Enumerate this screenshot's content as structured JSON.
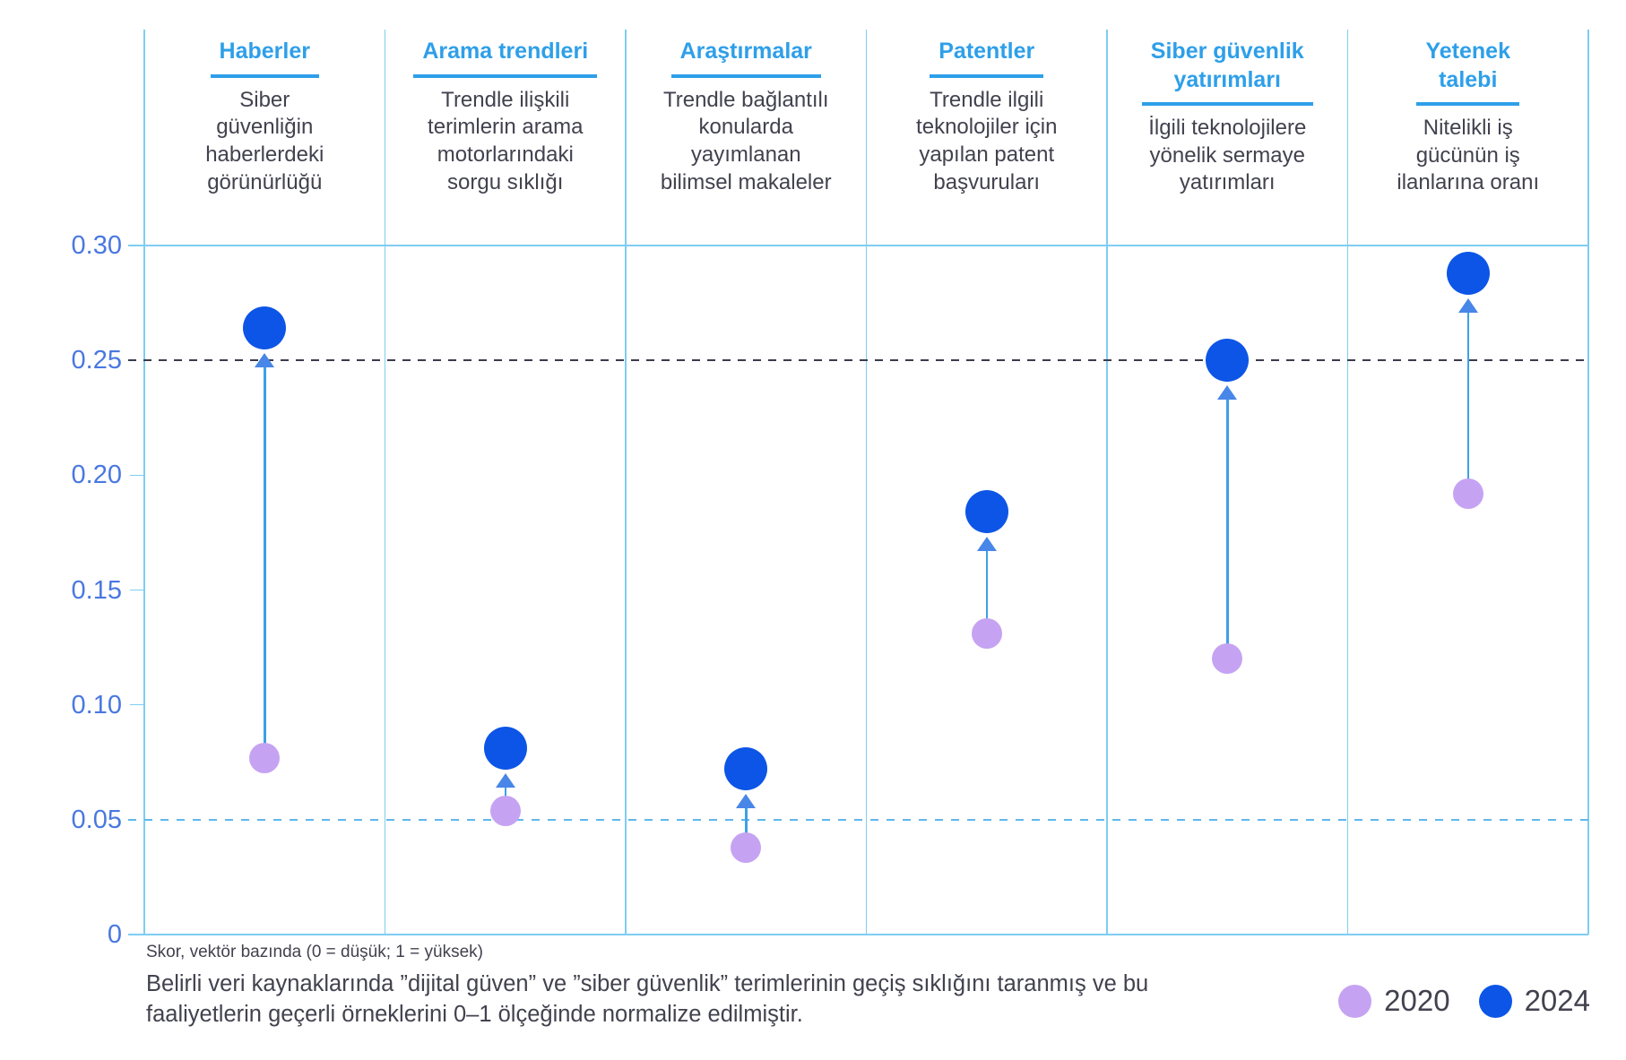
{
  "chart_data": {
    "type": "dumbbell-scatter",
    "description": "Cybersecurity trend indicators, normalized scores for 2020 vs 2024 across six data-source vectors",
    "y_axis": {
      "min": 0,
      "max": 0.3,
      "ticks": [
        0,
        0.05,
        0.1,
        0.15,
        0.2,
        0.25,
        0.3
      ],
      "tick_labels": [
        "0",
        "0.05",
        "0.10",
        "0.15",
        "0.20",
        "0.25",
        "0.30"
      ],
      "dashed_dark_gridline_at": 0.25,
      "dashed_light_gridline_at": 0.05,
      "solid_gridline_at": 0.3,
      "grid": "column separators vertical, baseline at 0"
    },
    "categories": [
      {
        "label": "Haberler",
        "description": "Siber\ngüvenliğin\nhaberlerdeki\ngörünürlüğü"
      },
      {
        "label": "Arama trendleri",
        "description": "Trendle ilişkili\nterimlerin arama\nmotorlarındaki\nsorgu sıklığı"
      },
      {
        "label": "Araştırmalar",
        "description": "Trendle bağlantılı\nkonularda\nyayımlanan\nbilimsel makaleler"
      },
      {
        "label": "Patentler",
        "description": "Trendle ilgili\nteknolojiler için\nyapılan patent\nbaşvuruları"
      },
      {
        "label": "Siber güvenlik\nyatırımları",
        "description": "İlgili teknolojilere\nyönelik sermaye\nyatırımları"
      },
      {
        "label": "Yetenek\ntalebi",
        "description": "Nitelikli iş\ngücünün iş\nilanlarına oranı"
      }
    ],
    "series": [
      {
        "name": "2020",
        "color": "#c5a3f2",
        "values": [
          0.077,
          0.054,
          0.038,
          0.131,
          0.12,
          0.192
        ]
      },
      {
        "name": "2024",
        "color": "#0d55e6",
        "values": [
          0.264,
          0.081,
          0.072,
          0.184,
          0.25,
          0.288
        ]
      }
    ],
    "legend": [
      {
        "label": "2020",
        "color": "#c5a3f2"
      },
      {
        "label": "2024",
        "color": "#0d55e6"
      }
    ],
    "legend_position": "bottom-right",
    "axis_note": "Skor, vektör bazında (0 = düşük; 1 = yüksek)",
    "footnote": "Belirli veri kaynaklarında ”dijital güven” ve ”siber güvenlik” terimlerinin geçiş sıklığını taranmış ve bu\nfaaliyetlerin geçerli örneklerini 0–1 ölçeğinde normalize edilmiştir.",
    "colors": {
      "accent_blue": "#2e9fe9",
      "grid_blue": "#7ecdf1",
      "dash_dark": "#3b3b4d",
      "dash_light": "#5fb8ec",
      "axis_label_blue": "#4a78e0",
      "text_dark": "#42424f",
      "arrow_line": "#3f9fe6",
      "arrow_head": "#4886e8"
    }
  }
}
